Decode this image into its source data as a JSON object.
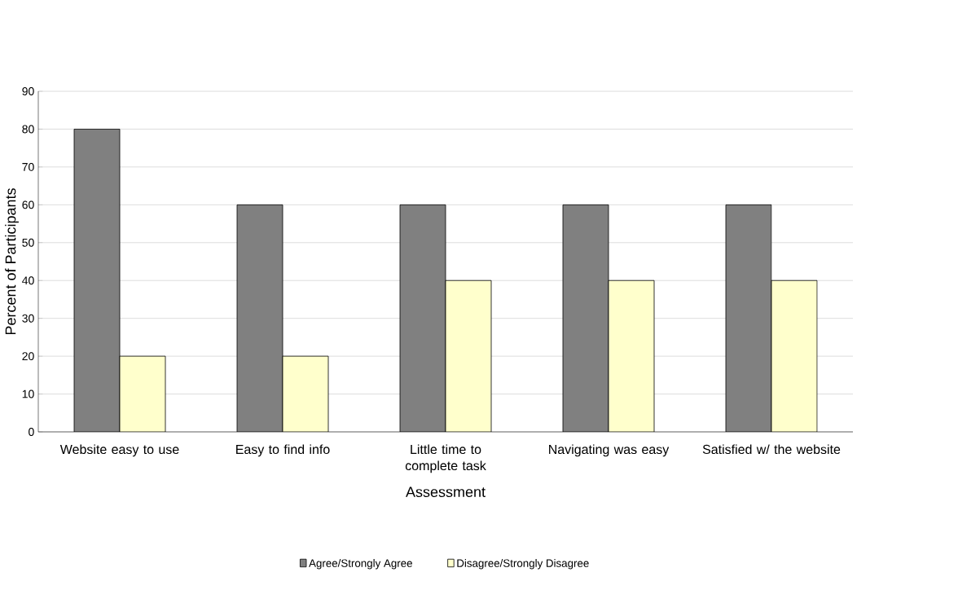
{
  "chart_data": {
    "type": "bar",
    "xlabel": "Assessment",
    "ylabel": "Percent of Participants",
    "categories": [
      "Website easy to use",
      "Easy to find info",
      "Little time to complete task",
      "Navigating was easy",
      "Satisfied w/ the website"
    ],
    "series": [
      {
        "name": "Agree/Strongly Agree",
        "color": "#808080",
        "values": [
          80,
          60,
          60,
          60,
          60
        ]
      },
      {
        "name": "Disagree/Strongly Disagree",
        "color": "#ffffcc",
        "values": [
          20,
          20,
          40,
          40,
          40
        ]
      }
    ],
    "ylim": [
      0,
      90
    ],
    "yticks": [
      0,
      10,
      20,
      30,
      40,
      50,
      60,
      70,
      80,
      90
    ],
    "grid": "y",
    "legend": "bottom"
  }
}
